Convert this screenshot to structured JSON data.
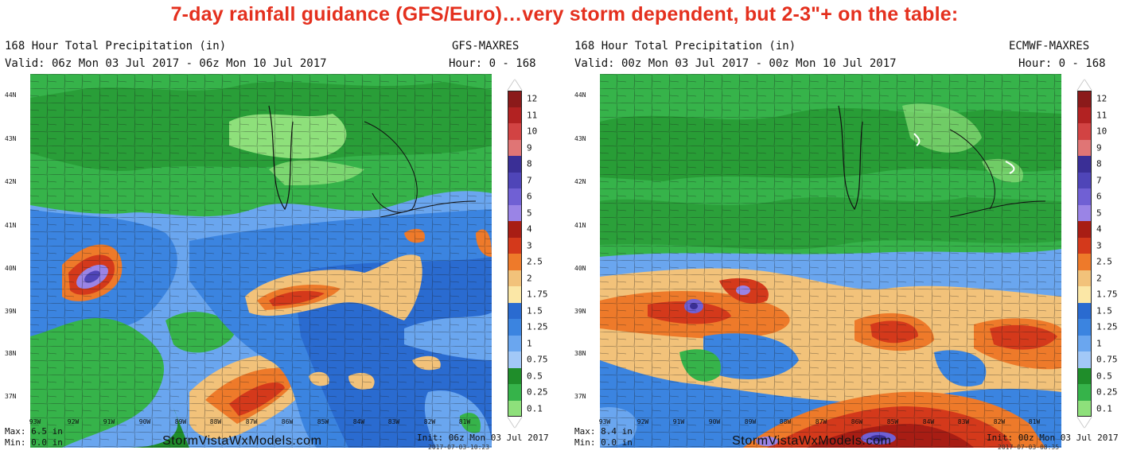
{
  "headline": "7-day rainfall guidance (GFS/Euro)…very storm dependent, but 2-3\"+ on the table:",
  "legend": {
    "levels": [
      "12",
      "11",
      "10",
      "9",
      "8",
      "7",
      "6",
      "5",
      "4",
      "3",
      "2.5",
      "2",
      "1.75",
      "1.5",
      "1.25",
      "1",
      "0.75",
      "0.5",
      "0.25",
      "0.1"
    ],
    "colors": [
      "#8b1a1a",
      "#b22222",
      "#d24343",
      "#e07575",
      "#3a2f96",
      "#4f45b8",
      "#7060d4",
      "#9a84e6",
      "#a81d14",
      "#d4391b",
      "#ee7a2a",
      "#f2c27a",
      "#fbe7a6",
      "#2a6bd0",
      "#3b84e0",
      "#6aa6ef",
      "#a2c8f7",
      "#1f8d2a",
      "#36b34a",
      "#8ee07b"
    ]
  },
  "lat_labels": [
    "44N",
    "43N",
    "42N",
    "41N",
    "40N",
    "39N",
    "38N",
    "37N"
  ],
  "lon_labels": [
    "93W",
    "92W",
    "91W",
    "90W",
    "89W",
    "88W",
    "87W",
    "86W",
    "85W",
    "84W",
    "83W",
    "82W",
    "81W"
  ],
  "panels": [
    {
      "id": "gfs",
      "title": "168 Hour Total Precipitation (in)",
      "model": "GFS-MAXRES",
      "valid": "Valid: 06z Mon 03 Jul 2017 - 06z Mon 10 Jul 2017",
      "hour": "Hour: 0 - 168",
      "max": "Max: 6.5 in",
      "min": "Min: 0.0 in",
      "credit": "StormVistaWxModels.com",
      "init": "Init: 06z Mon 03 Jul 2017",
      "stamp": "2017-07-03-10:23"
    },
    {
      "id": "ecmwf",
      "title": "168 Hour Total Precipitation (in)",
      "model": "ECMWF-MAXRES",
      "valid": "Valid: 00z Mon 03 Jul 2017 - 00z Mon 10 Jul 2017",
      "hour": "Hour: 0 - 168",
      "max": "Max: 8.4 in",
      "min": "Min: 0.0 in",
      "credit": "StormVistaWxModels.com",
      "init": "Init: 00z Mon 03 Jul 2017",
      "stamp": "2017-07-03-08:35"
    }
  ]
}
